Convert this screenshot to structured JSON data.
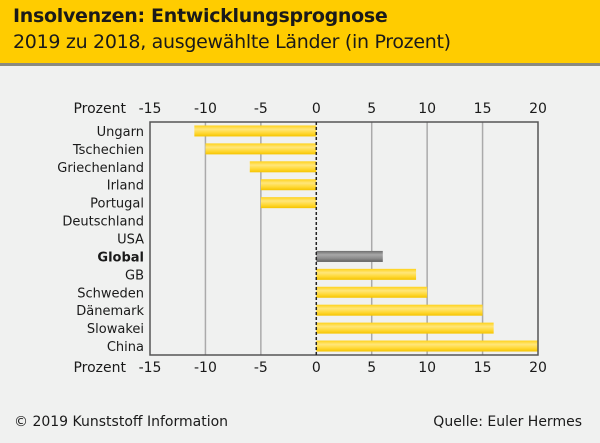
{
  "header": {
    "title": "Insolvenzen: Entwicklungsprognose",
    "subtitle": "2019 zu 2018, ausgewählte Länder (in Prozent)"
  },
  "footer": {
    "copyright": "© 2019 Kunststoff Information",
    "source": "Quelle: Euler Hermes"
  },
  "colors": {
    "header_bg": "#ffcc00",
    "bar": "#ffd634",
    "bar_highlight": "#888888",
    "background": "#f0f1f0"
  },
  "chart_data": {
    "type": "bar",
    "orientation": "horizontal",
    "title": "Insolvenzen: Entwicklungsprognose",
    "subtitle": "2019 zu 2018, ausgewählte Länder (in Prozent)",
    "xlabel": "Prozent",
    "ylabel": "",
    "xlim": [
      -15,
      20
    ],
    "xticks": [
      -15,
      -10,
      -5,
      0,
      5,
      10,
      15,
      20
    ],
    "xtick_labels": [
      "-15",
      "-10",
      "-5",
      "0",
      "5",
      "10",
      "15",
      "20"
    ],
    "grid": true,
    "categories": [
      "Ungarn",
      "Tschechien",
      "Griechenland",
      "Irland",
      "Portugal",
      "Deutschland",
      "USA",
      "Global",
      "GB",
      "Schweden",
      "Dänemark",
      "Slowakei",
      "China"
    ],
    "values": [
      -11,
      -10,
      -6,
      -5,
      -5,
      0,
      0,
      6,
      9,
      10,
      15,
      16,
      20
    ],
    "highlight": [
      "Global"
    ]
  }
}
